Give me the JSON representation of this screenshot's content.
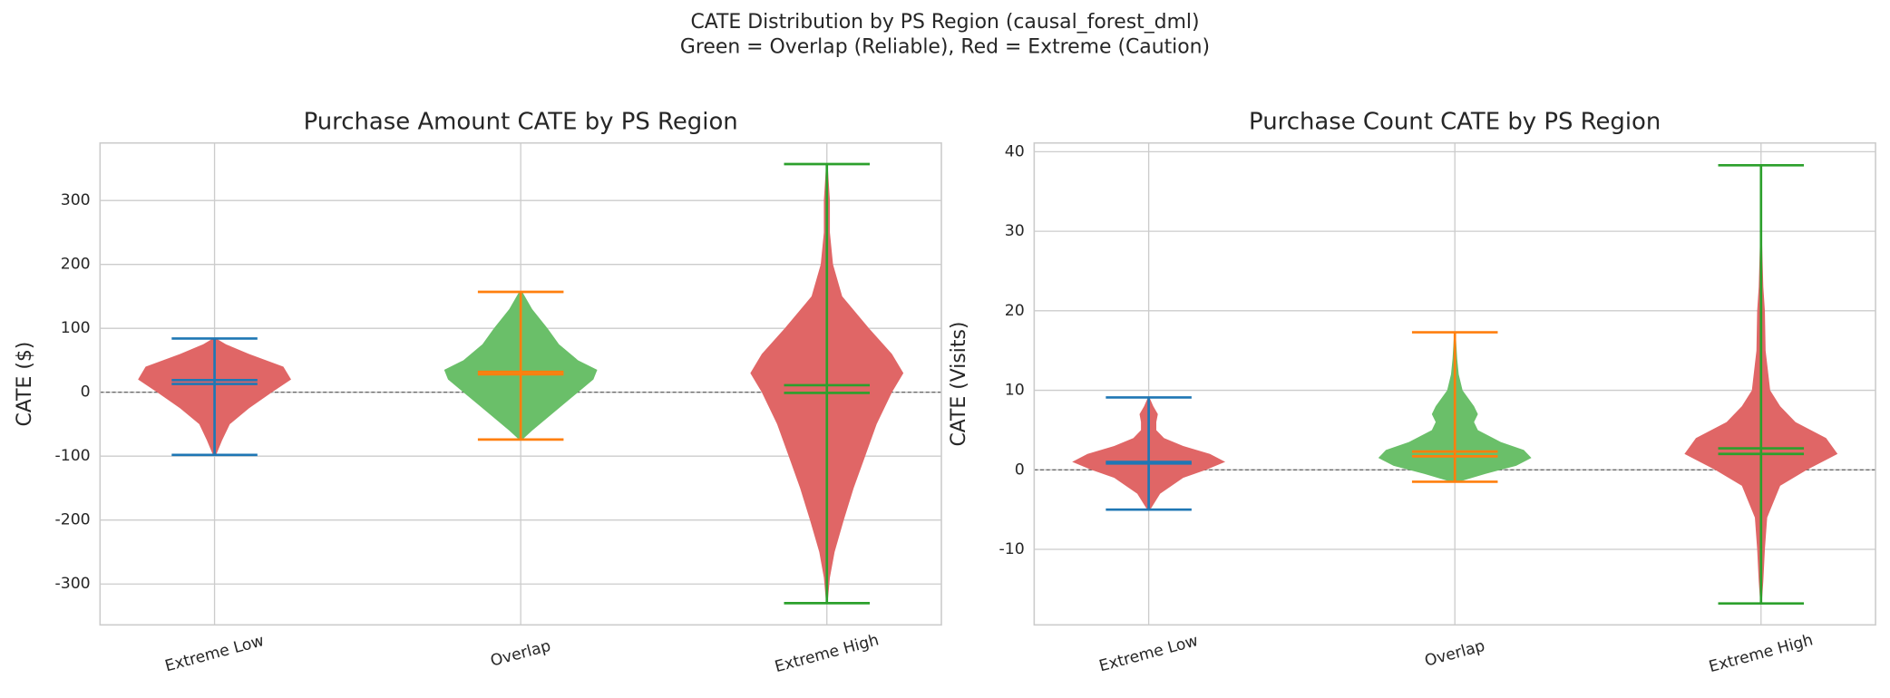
{
  "suptitle": [
    "CATE Distribution by PS Region (causal_forest_dml)",
    "Green = Overlap (Reliable), Red = Extreme (Caution)"
  ],
  "chart_data": [
    {
      "type": "violin",
      "title": "Purchase Amount CATE by PS Region",
      "ylabel": "CATE ($)",
      "categories": [
        "Extreme Low",
        "Overlap",
        "Extreme High"
      ],
      "ylim": [
        -364,
        390
      ],
      "yticks": [
        -300,
        -200,
        -100,
        0,
        100,
        200,
        300
      ],
      "grid": true,
      "reference_line": 0,
      "violins": [
        {
          "color": "#e06666",
          "line_color": "#1f77b4",
          "min": -98,
          "max": 84,
          "mean": 19,
          "median": 13,
          "density_y": [
            -98,
            -75,
            -50,
            -25,
            0,
            20,
            40,
            60,
            75,
            84
          ],
          "density": [
            0.02,
            0.1,
            0.2,
            0.45,
            0.75,
            1.0,
            0.9,
            0.45,
            0.15,
            0.02
          ]
        },
        {
          "color": "#6abf69",
          "line_color": "#ff7f0e",
          "min": -74,
          "max": 157,
          "mean": 32,
          "median": 28,
          "density_y": [
            -74,
            -60,
            -40,
            -20,
            0,
            20,
            35,
            50,
            75,
            100,
            130,
            157
          ],
          "density": [
            0.02,
            0.15,
            0.35,
            0.55,
            0.75,
            0.95,
            1.0,
            0.75,
            0.5,
            0.35,
            0.15,
            0.02
          ]
        },
        {
          "color": "#e06666",
          "line_color": "#2ca02c",
          "min": -330,
          "max": 357,
          "mean": 11,
          "median": -1,
          "density_y": [
            -330,
            -290,
            -250,
            -200,
            -150,
            -100,
            -50,
            0,
            30,
            60,
            100,
            150,
            200,
            250,
            300,
            357
          ],
          "density": [
            0.01,
            0.04,
            0.1,
            0.22,
            0.35,
            0.5,
            0.65,
            0.85,
            1.0,
            0.85,
            0.55,
            0.2,
            0.08,
            0.04,
            0.04,
            0.01
          ]
        }
      ]
    },
    {
      "type": "violin",
      "title": "Purchase Count CATE by PS Region",
      "ylabel": "CATE (Visits)",
      "categories": [
        "Extreme Low",
        "Overlap",
        "Extreme High"
      ],
      "ylim": [
        -19.5,
        41.1
      ],
      "yticks": [
        -10,
        0,
        10,
        20,
        30,
        40
      ],
      "grid": true,
      "reference_line": 0,
      "violins": [
        {
          "color": "#e06666",
          "line_color": "#1f77b4",
          "min": -5,
          "max": 9.1,
          "mean": 1.0,
          "median": 0.8,
          "density_y": [
            -5,
            -3,
            -1,
            0,
            1,
            2,
            3,
            4,
            5,
            6,
            7,
            8,
            9.1
          ],
          "density": [
            0.02,
            0.15,
            0.45,
            0.75,
            1.0,
            0.8,
            0.45,
            0.2,
            0.1,
            0.1,
            0.12,
            0.06,
            0.01
          ]
        },
        {
          "color": "#6abf69",
          "line_color": "#ff7f0e",
          "min": -1.5,
          "max": 17.3,
          "mean": 2.3,
          "median": 1.7,
          "density_y": [
            -1.5,
            -0.5,
            0.5,
            1.5,
            2.5,
            3.5,
            5,
            6,
            7,
            8,
            10,
            12,
            14,
            17.3
          ],
          "density": [
            0.05,
            0.4,
            0.8,
            1.0,
            0.9,
            0.6,
            0.3,
            0.25,
            0.3,
            0.25,
            0.1,
            0.05,
            0.03,
            0.01
          ]
        },
        {
          "color": "#e06666",
          "line_color": "#2ca02c",
          "min": -16.8,
          "max": 38.3,
          "mean": 2.7,
          "median": 2.0,
          "density_y": [
            -16.8,
            -14,
            -10,
            -6,
            -2,
            0,
            2,
            4,
            6,
            8,
            10,
            15,
            20,
            23,
            30,
            38.3
          ],
          "density": [
            0.01,
            0.03,
            0.05,
            0.08,
            0.25,
            0.6,
            1.0,
            0.85,
            0.45,
            0.25,
            0.12,
            0.06,
            0.05,
            0.03,
            0.01,
            0.005
          ]
        }
      ]
    }
  ]
}
